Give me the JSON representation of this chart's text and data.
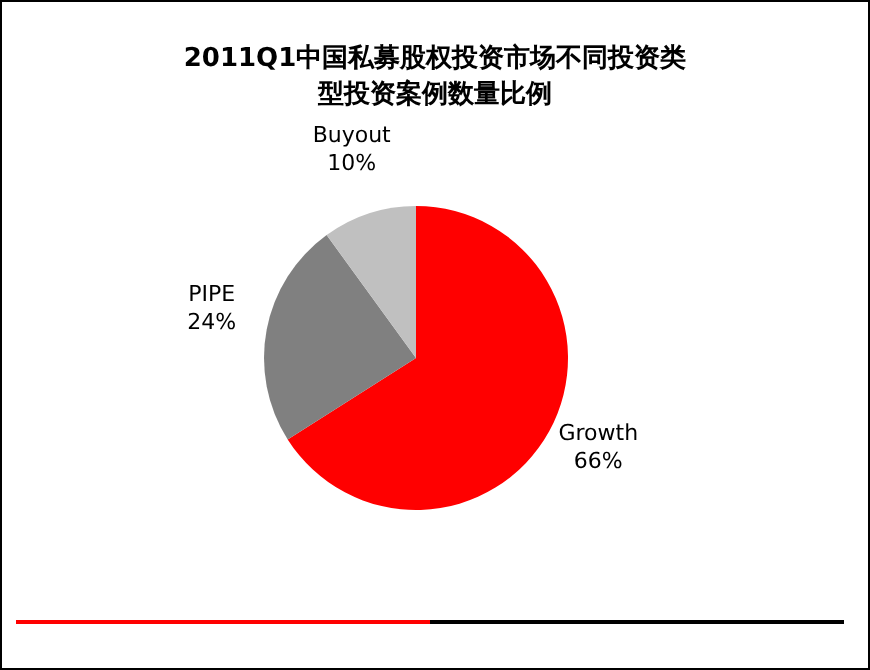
{
  "chart_data": {
    "type": "pie",
    "title": "2011Q1中国私募股权投资市场不同投资类型投资案例数量比例",
    "categories": [
      "Growth",
      "PIPE",
      "Buyout"
    ],
    "values": [
      66,
      24,
      10
    ],
    "colors": [
      "#ff0000",
      "#808080",
      "#c0c0c0"
    ],
    "value_labels": [
      "66%",
      "24%",
      "10%"
    ]
  }
}
